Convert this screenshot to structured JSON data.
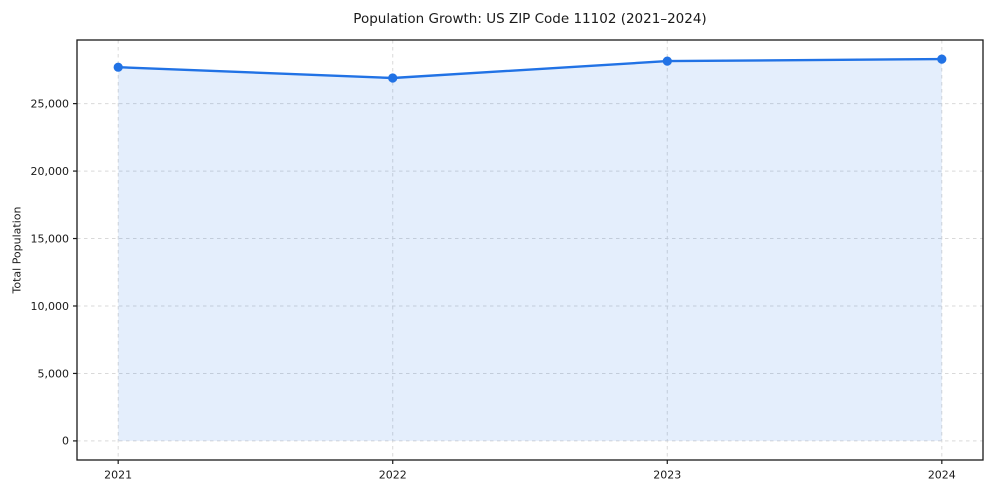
{
  "figure": {
    "background": "#ffffff"
  },
  "chart_data": {
    "type": "area",
    "title": "Population Growth: US ZIP Code 11102 (2021–2024)",
    "xlabel": "",
    "ylabel": "Total Population",
    "categories": [
      2021,
      2022,
      2023,
      2024
    ],
    "xtick_labels": [
      "2021",
      "2022",
      "2023",
      "2024"
    ],
    "series": [
      {
        "name": "Total Population",
        "values": [
          27700,
          26900,
          28150,
          28300
        ]
      }
    ],
    "fill_to_zero": true,
    "yticks": [
      0,
      5000,
      10000,
      15000,
      20000,
      25000
    ],
    "ytick_labels": [
      "0",
      "5,000",
      "10,000",
      "15,000",
      "20,000",
      "25,000"
    ],
    "xlim": [
      2020.85,
      2024.15
    ],
    "ylim": [
      -1415,
      29715
    ],
    "grid": true,
    "grid_style": "dashed",
    "legend": "none",
    "marker": "circle",
    "colors": {
      "line": "#2172e5",
      "marker": "#2172e5",
      "fill": "rgba(33,114,229,0.12)",
      "grid": "#d9d9d9",
      "spine": "#1a1a1a",
      "text": "#1a1a1a"
    }
  }
}
